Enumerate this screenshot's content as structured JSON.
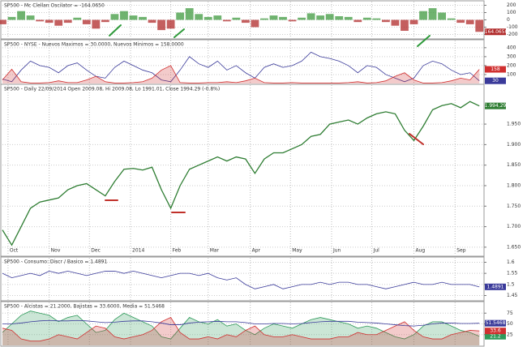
{
  "chart_data": [
    {
      "type": "bar",
      "title": "SP500 - Mc Clellan Oscilator = -164.0650",
      "x": [
        0,
        1,
        2,
        3,
        4,
        5,
        6,
        7,
        8,
        9,
        10,
        11,
        12,
        13,
        14,
        15,
        16,
        17,
        18,
        19,
        20,
        21,
        22,
        23,
        24,
        25,
        26,
        27,
        28,
        29,
        30,
        31,
        32,
        33,
        34,
        35,
        36,
        37,
        38,
        39,
        40,
        41,
        42,
        43,
        44,
        45,
        46,
        47,
        48,
        49,
        50,
        51
      ],
      "xlim": [
        0,
        51.5
      ],
      "ylim": [
        -250,
        250
      ],
      "yticks": [
        200,
        100,
        0,
        -100,
        -200
      ],
      "colors": {
        "positive": "#3f9a3f",
        "negative": "#b02a2a"
      },
      "series": [
        {
          "name": "Mc Clellan Oscilator",
          "color": "#b02a2a",
          "last_label": "-164.0650",
          "values": [
            -60,
            40,
            120,
            60,
            -20,
            -40,
            -80,
            -40,
            30,
            -60,
            -120,
            -30,
            80,
            120,
            60,
            40,
            -40,
            -140,
            -120,
            100,
            160,
            80,
            40,
            60,
            -20,
            30,
            -40,
            -100,
            20,
            60,
            40,
            -20,
            30,
            90,
            60,
            80,
            50,
            40,
            -30,
            30,
            20,
            -30,
            -80,
            -150,
            -60,
            120,
            160,
            100,
            20,
            -40,
            -60,
            -164.065
          ]
        }
      ]
    },
    {
      "type": "line",
      "title": "SP500 - NYSE - Nuevos Maximos = 30.0000, Nuevos Minimos = 158.0000",
      "x": [
        0,
        1,
        2,
        3,
        4,
        5,
        6,
        7,
        8,
        9,
        10,
        11,
        12,
        13,
        14,
        15,
        16,
        17,
        18,
        19,
        20,
        21,
        22,
        23,
        24,
        25,
        26,
        27,
        28,
        29,
        30,
        31,
        32,
        33,
        34,
        35,
        36,
        37,
        38,
        39,
        40,
        41,
        42,
        43,
        44,
        45,
        46,
        47,
        48,
        49,
        50,
        51
      ],
      "xlim": [
        0,
        51.5
      ],
      "ylim": [
        0,
        480
      ],
      "yticks": [
        400,
        300,
        200,
        100
      ],
      "series": [
        {
          "name": "Nuevos Maximos",
          "color": "#3a3a9a",
          "last_label": "30",
          "values": [
            50,
            20,
            150,
            250,
            200,
            180,
            120,
            200,
            230,
            150,
            80,
            60,
            180,
            250,
            200,
            150,
            120,
            40,
            20,
            150,
            300,
            220,
            180,
            250,
            150,
            200,
            120,
            60,
            180,
            220,
            180,
            200,
            250,
            350,
            300,
            280,
            250,
            200,
            120,
            200,
            180,
            100,
            60,
            20,
            60,
            200,
            250,
            220,
            150,
            100,
            120,
            30
          ]
        },
        {
          "name": "Nuevos Minimos",
          "color": "#d03030",
          "fill": true,
          "last_label": "158",
          "values": [
            40,
            160,
            20,
            5,
            5,
            10,
            30,
            10,
            10,
            40,
            80,
            20,
            5,
            5,
            10,
            20,
            60,
            150,
            200,
            10,
            5,
            5,
            10,
            10,
            20,
            10,
            30,
            60,
            10,
            5,
            5,
            10,
            5,
            5,
            5,
            5,
            5,
            10,
            20,
            5,
            10,
            30,
            80,
            120,
            40,
            5,
            5,
            10,
            30,
            60,
            40,
            158
          ]
        }
      ]
    },
    {
      "type": "line",
      "title": "SP500 - Daily 22/09/2014 Open 2009.08, Hi 2009.08, Lo 1991.01, Close 1994.29 (-0.8%)",
      "x": [
        0,
        1,
        2,
        3,
        4,
        5,
        6,
        7,
        8,
        9,
        10,
        11,
        12,
        13,
        14,
        15,
        16,
        17,
        18,
        19,
        20,
        21,
        22,
        23,
        24,
        25,
        26,
        27,
        28,
        29,
        30,
        31,
        32,
        33,
        34,
        35,
        36,
        37,
        38,
        39,
        40,
        41,
        42,
        43,
        44,
        45,
        46,
        47,
        48,
        49,
        50,
        51
      ],
      "xlim": [
        0,
        51.5
      ],
      "ylim": [
        1630,
        2045
      ],
      "yticks": [
        {
          "value": 1650,
          "label": "1.650"
        },
        {
          "value": 1700,
          "label": "1.700"
        },
        {
          "value": 1750,
          "label": "1.750"
        },
        {
          "value": 1800,
          "label": "1.800"
        },
        {
          "value": 1850,
          "label": "1.850"
        },
        {
          "value": 1900,
          "label": "1.900"
        },
        {
          "value": 1950,
          "label": "1.950"
        }
      ],
      "xticks": [
        {
          "value": 0.6,
          "label": "Oct"
        },
        {
          "value": 5,
          "label": "Nov"
        },
        {
          "value": 9.3,
          "label": "Dec"
        },
        {
          "value": 13.7,
          "label": "2014"
        },
        {
          "value": 18,
          "label": "Feb"
        },
        {
          "value": 22,
          "label": "Mar"
        },
        {
          "value": 26.5,
          "label": "Apr"
        },
        {
          "value": 30.8,
          "label": "May"
        },
        {
          "value": 35.2,
          "label": "Jun"
        },
        {
          "value": 39.5,
          "label": "Jul"
        },
        {
          "value": 44,
          "label": "Aug"
        },
        {
          "value": 48.4,
          "label": "Sep"
        }
      ],
      "grid": true,
      "series": [
        {
          "name": "SP500",
          "color": "#2e7d32",
          "last_label": "1.994,29",
          "values": [
            1692,
            1655,
            1700,
            1745,
            1760,
            1765,
            1770,
            1790,
            1800,
            1805,
            1790,
            1775,
            1810,
            1840,
            1842,
            1838,
            1845,
            1790,
            1745,
            1800,
            1840,
            1850,
            1860,
            1870,
            1860,
            1870,
            1865,
            1830,
            1865,
            1880,
            1880,
            1890,
            1900,
            1920,
            1925,
            1950,
            1955,
            1960,
            1950,
            1965,
            1975,
            1980,
            1975,
            1935,
            1910,
            1945,
            1985,
            1995,
            2000,
            1990,
            2005,
            1994.29
          ]
        }
      ]
    },
    {
      "type": "line",
      "title": "SP500 - Consumo: Discr / Basico = 1.4891",
      "x": [
        0,
        1,
        2,
        3,
        4,
        5,
        6,
        7,
        8,
        9,
        10,
        11,
        12,
        13,
        14,
        15,
        16,
        17,
        18,
        19,
        20,
        21,
        22,
        23,
        24,
        25,
        26,
        27,
        28,
        29,
        30,
        31,
        32,
        33,
        34,
        35,
        36,
        37,
        38,
        39,
        40,
        41,
        42,
        43,
        44,
        45,
        46,
        47,
        48,
        49,
        50,
        51
      ],
      "xlim": [
        0,
        51.5
      ],
      "ylim": [
        1.43,
        1.62
      ],
      "yticks": [
        1.6,
        1.55,
        1.5,
        1.45
      ],
      "series": [
        {
          "name": "Consumo",
          "color": "#3a3a9a",
          "last_label": "1.4891",
          "values": [
            1.55,
            1.53,
            1.54,
            1.55,
            1.54,
            1.56,
            1.55,
            1.56,
            1.55,
            1.54,
            1.55,
            1.56,
            1.56,
            1.55,
            1.56,
            1.55,
            1.54,
            1.53,
            1.54,
            1.55,
            1.55,
            1.54,
            1.55,
            1.53,
            1.52,
            1.53,
            1.5,
            1.48,
            1.49,
            1.5,
            1.48,
            1.49,
            1.5,
            1.5,
            1.51,
            1.5,
            1.51,
            1.51,
            1.5,
            1.5,
            1.49,
            1.48,
            1.49,
            1.5,
            1.51,
            1.5,
            1.5,
            1.51,
            1.5,
            1.5,
            1.5,
            1.4891
          ]
        }
      ]
    },
    {
      "type": "line",
      "title": "SP500 - Alcistas = 21.2000, Bajistas = 33.6000, Media = 51.5468",
      "x": [
        0,
        1,
        2,
        3,
        4,
        5,
        6,
        7,
        8,
        9,
        10,
        11,
        12,
        13,
        14,
        15,
        16,
        17,
        18,
        19,
        20,
        21,
        22,
        23,
        24,
        25,
        26,
        27,
        28,
        29,
        30,
        31,
        32,
        33,
        34,
        35,
        36,
        37,
        38,
        39,
        40,
        41,
        42,
        43,
        44,
        45,
        46,
        47,
        48,
        49,
        50,
        51
      ],
      "xlim": [
        0,
        51.5
      ],
      "ylim": [
        0,
        100
      ],
      "yticks": [
        75,
        50,
        25
      ],
      "series": [
        {
          "name": "Alcistas",
          "color": "#2e9a5a",
          "fill": true,
          "last_label": "21.2",
          "values": [
            30,
            50,
            70,
            80,
            75,
            70,
            55,
            65,
            70,
            50,
            30,
            35,
            60,
            75,
            65,
            55,
            45,
            20,
            15,
            40,
            65,
            55,
            50,
            60,
            45,
            50,
            35,
            25,
            40,
            50,
            45,
            40,
            50,
            60,
            65,
            60,
            55,
            50,
            40,
            45,
            40,
            30,
            20,
            15,
            25,
            45,
            55,
            55,
            45,
            35,
            30,
            21.2
          ]
        },
        {
          "name": "Bajistas",
          "color": "#d03030",
          "fill": true,
          "last_label": "33.6",
          "values": [
            40,
            35,
            15,
            10,
            10,
            15,
            25,
            20,
            15,
            30,
            45,
            40,
            20,
            15,
            20,
            25,
            35,
            55,
            65,
            30,
            15,
            15,
            20,
            15,
            25,
            20,
            35,
            45,
            25,
            20,
            20,
            25,
            20,
            15,
            15,
            15,
            20,
            20,
            30,
            25,
            25,
            35,
            45,
            55,
            35,
            20,
            15,
            15,
            25,
            30,
            35,
            33.6
          ]
        },
        {
          "name": "Media",
          "color": "#3a3a9a",
          "last_label": "51.5468",
          "values": [
            50,
            50,
            52,
            55,
            57,
            58,
            57,
            57,
            58,
            57,
            55,
            53,
            54,
            56,
            57,
            57,
            55,
            52,
            48,
            48,
            52,
            54,
            55,
            56,
            55,
            55,
            53,
            50,
            50,
            51,
            51,
            50,
            51,
            53,
            55,
            56,
            56,
            56,
            54,
            53,
            52,
            50,
            48,
            46,
            45,
            47,
            50,
            52,
            52,
            51,
            51,
            51.5468
          ]
        }
      ]
    }
  ]
}
